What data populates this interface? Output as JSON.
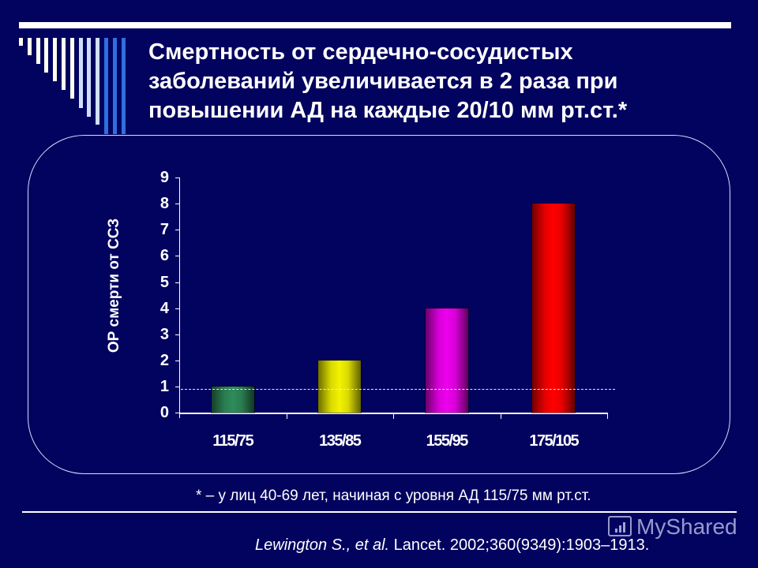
{
  "slide": {
    "title_lines": [
      "Смертность  от сердечно-сосудистых",
      "заболеваний увеличивается в 2 раза при",
      "повышении АД на каждые 20/10 мм рт.ст.*"
    ],
    "footnote": "* – у лиц 40-69 лет, начиная с уровня АД 115/75 мм рт.ст.",
    "reference": {
      "authors": "Lewington S., et al.",
      "citation": " Lancet. 2002;360(9349):1903–1913."
    },
    "watermark": "MyShared",
    "colors": {
      "background": "#02025f",
      "stripe_light": "#fffff0",
      "stripe_pale_blue": "#cfe0ff",
      "stripe_blue": "#2f6fe0"
    }
  },
  "chart_data": {
    "type": "bar",
    "title": "",
    "xlabel": "",
    "ylabel": "ОР смерти от ССЗ",
    "categories": [
      "115/75",
      "135/85",
      "155/95",
      "175/105"
    ],
    "values": [
      1,
      2,
      4,
      8
    ],
    "bar_colors": [
      "#2e8b5a",
      "#f2f200",
      "#ee00ee",
      "#ff0000"
    ],
    "ylim": [
      0,
      9
    ],
    "yticks": [
      "0",
      "1",
      "2",
      "3",
      "4",
      "5",
      "6",
      "7",
      "8",
      "9"
    ],
    "reference_line": {
      "y": 0.9,
      "style": "dashed",
      "color": "#e8e8ff"
    },
    "grid": false,
    "legend": null
  }
}
